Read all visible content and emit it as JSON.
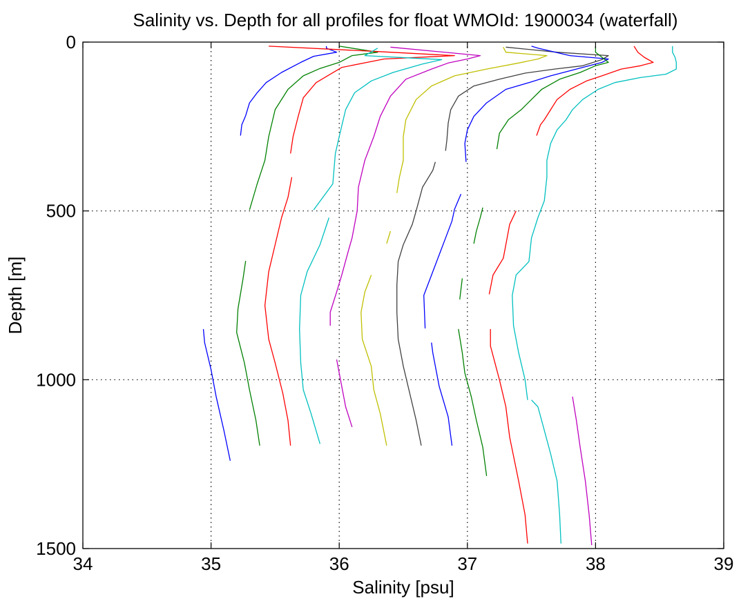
{
  "chart_data": {
    "type": "line",
    "title": "Salinity vs. Depth for all profiles for float WMOId: 1900034 (waterfall)",
    "xlabel": "Salinity [psu]",
    "ylabel": "Depth [m]",
    "xlim": [
      34,
      39
    ],
    "ylim": [
      0,
      1500
    ],
    "y_reversed": true,
    "xticks": [
      "34",
      "35",
      "36",
      "37",
      "38",
      "39"
    ],
    "yticks": [
      "0",
      "500",
      "1000",
      "1500"
    ],
    "grid": true,
    "series": [
      {
        "color": "#0000ff",
        "points": [
          [
            35.23,
            277
          ],
          [
            35.24,
            245
          ],
          [
            35.27,
            218
          ],
          [
            35.3,
            180
          ],
          [
            35.36,
            150
          ],
          [
            35.43,
            120
          ],
          [
            35.55,
            90
          ],
          [
            35.7,
            60
          ],
          [
            35.8,
            42
          ],
          [
            35.98,
            30
          ],
          [
            35.9,
            18
          ],
          [
            35.9,
            12
          ]
        ]
      },
      {
        "color": "#0000ff",
        "points": [
          [
            35.15,
            1240
          ],
          [
            35.1,
            1150
          ],
          [
            35.04,
            1050
          ],
          [
            35.0,
            970
          ],
          [
            34.95,
            890
          ],
          [
            34.94,
            850
          ]
        ]
      },
      {
        "color": "#008000",
        "points": [
          [
            35.3,
            497
          ],
          [
            35.36,
            420
          ],
          [
            35.42,
            350
          ],
          [
            35.45,
            280
          ],
          [
            35.5,
            200
          ],
          [
            35.6,
            140
          ],
          [
            35.72,
            100
          ],
          [
            35.85,
            78
          ],
          [
            36.0,
            60
          ],
          [
            36.1,
            40
          ],
          [
            36.3,
            30
          ],
          [
            36.0,
            12
          ]
        ]
      },
      {
        "color": "#008000",
        "points": [
          [
            35.38,
            1195
          ],
          [
            35.35,
            1120
          ],
          [
            35.3,
            1030
          ],
          [
            35.26,
            950
          ],
          [
            35.2,
            860
          ],
          [
            35.21,
            790
          ],
          [
            35.25,
            700
          ],
          [
            35.27,
            648
          ]
        ]
      },
      {
        "color": "#ff0000",
        "points": [
          [
            35.62,
            330
          ],
          [
            35.64,
            280
          ],
          [
            35.68,
            220
          ],
          [
            35.72,
            165
          ],
          [
            35.82,
            120
          ],
          [
            36.02,
            75
          ],
          [
            36.35,
            50
          ],
          [
            36.9,
            40
          ],
          [
            36.3,
            28
          ],
          [
            35.45,
            12
          ]
        ]
      },
      {
        "color": "#ff0000",
        "points": [
          [
            35.62,
            1195
          ],
          [
            35.6,
            1120
          ],
          [
            35.56,
            1040
          ],
          [
            35.5,
            950
          ],
          [
            35.45,
            880
          ],
          [
            35.42,
            780
          ],
          [
            35.45,
            680
          ],
          [
            35.5,
            600
          ],
          [
            35.55,
            520
          ],
          [
            35.6,
            460
          ],
          [
            35.63,
            400
          ]
        ]
      },
      {
        "color": "#00bfbf",
        "points": [
          [
            35.8,
            497
          ],
          [
            35.95,
            420
          ],
          [
            35.97,
            330
          ],
          [
            36.0,
            280
          ],
          [
            36.05,
            200
          ],
          [
            36.12,
            150
          ],
          [
            36.25,
            115
          ],
          [
            36.42,
            90
          ],
          [
            36.65,
            65
          ],
          [
            36.8,
            52
          ],
          [
            36.2,
            40
          ],
          [
            36.3,
            18
          ]
        ]
      },
      {
        "color": "#00bfbf",
        "points": [
          [
            35.85,
            1190
          ],
          [
            35.78,
            1100
          ],
          [
            35.72,
            1030
          ],
          [
            35.7,
            950
          ],
          [
            35.69,
            850
          ],
          [
            35.7,
            750
          ],
          [
            35.75,
            680
          ],
          [
            35.85,
            600
          ],
          [
            35.92,
            520
          ]
        ]
      },
      {
        "color": "#bf00bf",
        "points": [
          [
            35.93,
            840
          ],
          [
            35.93,
            800
          ],
          [
            35.98,
            740
          ],
          [
            36.02,
            690
          ],
          [
            36.07,
            620
          ],
          [
            36.1,
            580
          ],
          [
            36.14,
            500
          ],
          [
            36.15,
            430
          ],
          [
            36.2,
            350
          ],
          [
            36.27,
            280
          ],
          [
            36.32,
            220
          ],
          [
            36.4,
            160
          ],
          [
            36.52,
            110
          ],
          [
            36.72,
            80
          ],
          [
            36.85,
            62
          ],
          [
            37.0,
            50
          ],
          [
            37.1,
            40
          ],
          [
            36.4,
            15
          ]
        ]
      },
      {
        "color": "#bf00bf",
        "points": [
          [
            36.1,
            1140
          ],
          [
            36.05,
            1080
          ],
          [
            36.02,
            1020
          ],
          [
            35.98,
            940
          ]
        ]
      },
      {
        "color": "#bfbf00",
        "points": [
          [
            36.45,
            447
          ],
          [
            36.47,
            400
          ],
          [
            36.5,
            350
          ],
          [
            36.5,
            280
          ],
          [
            36.52,
            230
          ],
          [
            36.6,
            170
          ],
          [
            36.72,
            130
          ],
          [
            36.9,
            100
          ],
          [
            37.15,
            80
          ],
          [
            37.4,
            62
          ],
          [
            37.55,
            50
          ],
          [
            37.62,
            40
          ],
          [
            37.3,
            30
          ],
          [
            37.28,
            15
          ]
        ]
      },
      {
        "color": "#bfbf00",
        "points": [
          [
            36.37,
            597
          ],
          [
            36.4,
            560
          ]
        ]
      },
      {
        "color": "#bfbf00",
        "points": [
          [
            36.37,
            1195
          ],
          [
            36.32,
            1100
          ],
          [
            36.27,
            1030
          ],
          [
            36.25,
            960
          ],
          [
            36.18,
            880
          ],
          [
            36.17,
            800
          ],
          [
            36.2,
            740
          ],
          [
            36.25,
            690
          ]
        ]
      },
      {
        "color": "#404040",
        "points": [
          [
            36.64,
            1195
          ],
          [
            36.6,
            1120
          ],
          [
            36.55,
            1040
          ],
          [
            36.5,
            960
          ],
          [
            36.46,
            880
          ],
          [
            36.45,
            800
          ],
          [
            36.45,
            720
          ],
          [
            36.46,
            650
          ],
          [
            36.5,
            600
          ],
          [
            36.57,
            540
          ],
          [
            36.6,
            500
          ],
          [
            36.65,
            430
          ],
          [
            36.73,
            380
          ],
          [
            36.75,
            355
          ]
        ]
      },
      {
        "color": "#404040",
        "points": [
          [
            36.83,
            322
          ],
          [
            36.84,
            290
          ],
          [
            36.85,
            240
          ],
          [
            36.87,
            200
          ],
          [
            36.93,
            160
          ],
          [
            37.05,
            130
          ],
          [
            37.25,
            110
          ],
          [
            37.45,
            92
          ],
          [
            37.68,
            80
          ],
          [
            37.9,
            70
          ],
          [
            38.05,
            52
          ],
          [
            38.1,
            40
          ],
          [
            37.7,
            30
          ],
          [
            37.3,
            15
          ]
        ]
      },
      {
        "color": "#0000ff",
        "points": [
          [
            36.99,
            355
          ],
          [
            36.98,
            300
          ],
          [
            37.0,
            260
          ],
          [
            37.05,
            220
          ],
          [
            37.15,
            180
          ],
          [
            37.3,
            140
          ],
          [
            37.48,
            120
          ],
          [
            37.65,
            100
          ],
          [
            37.85,
            80
          ],
          [
            38.05,
            60
          ],
          [
            38.1,
            50
          ],
          [
            37.8,
            40
          ],
          [
            37.55,
            18
          ],
          [
            37.5,
            12
          ]
        ]
      },
      {
        "color": "#0000ff",
        "points": [
          [
            36.88,
            1195
          ],
          [
            36.85,
            1110
          ],
          [
            36.78,
            1020
          ],
          [
            36.75,
            960
          ],
          [
            36.73,
            920
          ],
          [
            36.72,
            890
          ]
        ]
      },
      {
        "color": "#0000ff",
        "points": [
          [
            36.67,
            848
          ],
          [
            36.66,
            750
          ],
          [
            36.75,
            660
          ],
          [
            36.82,
            590
          ],
          [
            36.88,
            530
          ],
          [
            36.9,
            495
          ],
          [
            36.95,
            450
          ]
        ]
      },
      {
        "color": "#008000",
        "points": [
          [
            37.23,
            317
          ],
          [
            37.25,
            270
          ],
          [
            37.32,
            230
          ],
          [
            37.42,
            200
          ],
          [
            37.5,
            170
          ],
          [
            37.58,
            140
          ],
          [
            37.72,
            110
          ],
          [
            37.88,
            90
          ],
          [
            38.0,
            70
          ],
          [
            38.1,
            60
          ],
          [
            38.05,
            45
          ],
          [
            38.0,
            30
          ],
          [
            38.0,
            12
          ]
        ]
      },
      {
        "color": "#008000",
        "points": [
          [
            37.05,
            597
          ],
          [
            37.07,
            560
          ],
          [
            37.1,
            520
          ],
          [
            37.12,
            490
          ]
        ]
      },
      {
        "color": "#008000",
        "points": [
          [
            36.94,
            762
          ],
          [
            36.96,
            700
          ]
        ]
      },
      {
        "color": "#008000",
        "points": [
          [
            37.15,
            1285
          ],
          [
            37.12,
            1200
          ],
          [
            37.07,
            1120
          ],
          [
            37.03,
            1050
          ],
          [
            36.98,
            980
          ],
          [
            36.96,
            920
          ],
          [
            36.93,
            850
          ]
        ]
      },
      {
        "color": "#ff0000",
        "points": [
          [
            37.54,
            277
          ],
          [
            37.57,
            245
          ],
          [
            37.6,
            230
          ],
          [
            37.65,
            200
          ],
          [
            37.7,
            170
          ],
          [
            37.8,
            140
          ],
          [
            37.93,
            115
          ],
          [
            38.05,
            100
          ],
          [
            38.2,
            80
          ],
          [
            38.35,
            70
          ],
          [
            38.45,
            60
          ],
          [
            38.38,
            45
          ],
          [
            38.33,
            30
          ],
          [
            38.3,
            12
          ]
        ]
      },
      {
        "color": "#ff0000",
        "points": [
          [
            37.17,
            747
          ],
          [
            37.2,
            690
          ],
          [
            37.28,
            640
          ],
          [
            37.3,
            600
          ],
          [
            37.33,
            540
          ],
          [
            37.38,
            500
          ]
        ]
      },
      {
        "color": "#ff0000",
        "points": [
          [
            37.47,
            1485
          ],
          [
            37.45,
            1400
          ],
          [
            37.4,
            1300
          ],
          [
            37.33,
            1170
          ],
          [
            37.3,
            1080
          ],
          [
            37.25,
            1000
          ],
          [
            37.18,
            900
          ],
          [
            37.18,
            850
          ]
        ]
      },
      {
        "color": "#00bfbf",
        "points": [
          [
            37.47,
            1060
          ],
          [
            37.45,
            1000
          ],
          [
            37.4,
            920
          ],
          [
            37.36,
            840
          ],
          [
            37.35,
            750
          ],
          [
            37.38,
            690
          ],
          [
            37.48,
            650
          ],
          [
            37.5,
            580
          ],
          [
            37.55,
            520
          ],
          [
            37.6,
            470
          ],
          [
            37.62,
            400
          ],
          [
            37.62,
            350
          ],
          [
            37.65,
            300
          ],
          [
            37.7,
            260
          ],
          [
            37.77,
            230
          ],
          [
            37.82,
            200
          ],
          [
            37.9,
            170
          ],
          [
            38.02,
            140
          ],
          [
            38.15,
            120
          ],
          [
            38.35,
            105
          ],
          [
            38.55,
            95
          ],
          [
            38.63,
            80
          ],
          [
            38.63,
            60
          ],
          [
            38.62,
            45
          ],
          [
            38.6,
            30
          ],
          [
            38.6,
            12
          ]
        ]
      },
      {
        "color": "#00bfbf",
        "points": [
          [
            37.73,
            1485
          ],
          [
            37.72,
            1400
          ],
          [
            37.7,
            1300
          ],
          [
            37.65,
            1220
          ],
          [
            37.6,
            1150
          ],
          [
            37.55,
            1080
          ],
          [
            37.5,
            1060
          ]
        ]
      },
      {
        "color": "#bf00bf",
        "points": [
          [
            37.97,
            1490
          ],
          [
            37.95,
            1400
          ],
          [
            37.92,
            1300
          ],
          [
            37.88,
            1200
          ],
          [
            37.85,
            1120
          ],
          [
            37.82,
            1050
          ]
        ]
      }
    ]
  }
}
